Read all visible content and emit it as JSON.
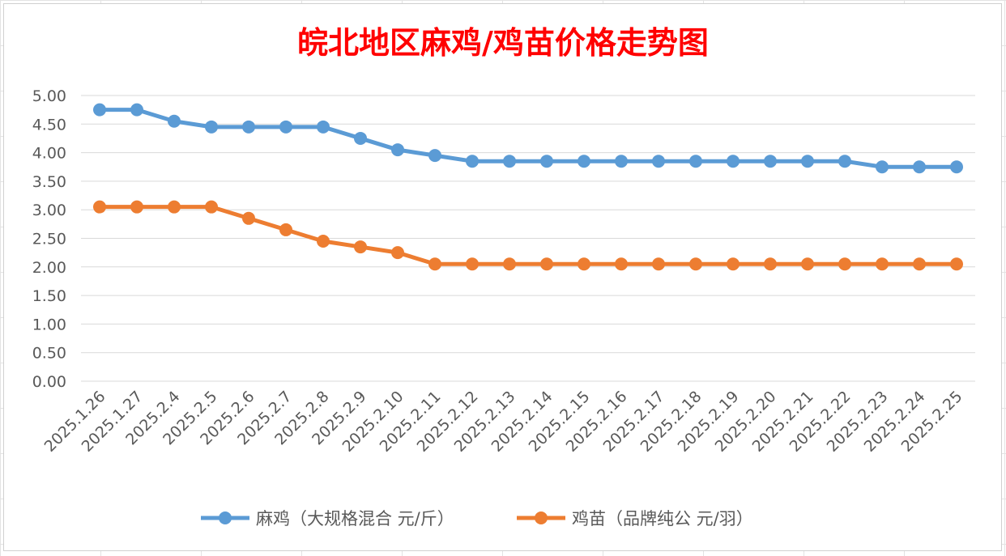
{
  "chart_data": {
    "type": "line",
    "title": "皖北地区麻鸡/鸡苗价格走势图",
    "xlabel": "",
    "ylabel": "",
    "ylim": [
      0,
      5
    ],
    "ytick_labels": [
      "0.00",
      "0.50",
      "1.00",
      "1.50",
      "2.00",
      "2.50",
      "3.00",
      "3.50",
      "4.00",
      "4.50",
      "5.00"
    ],
    "grid": true,
    "legend_position": "bottom",
    "categories": [
      "2025.1.26",
      "2025.1.27",
      "2025.2.4",
      "2025.2.5",
      "2025.2.6",
      "2025.2.7",
      "2025.2.8",
      "2025.2.9",
      "2025.2.10",
      "2025.2.11",
      "2025.2.12",
      "2025.2.13",
      "2025.2.14",
      "2025.2.15",
      "2025.2.16",
      "2025.2.17",
      "2025.2.18",
      "2025.2.19",
      "2025.2.20",
      "2025.2.21",
      "2025.2.22",
      "2025.2.23",
      "2025.2.24",
      "2025.2.25"
    ],
    "series": [
      {
        "name": "麻鸡（大规格混合 元/斤）",
        "color": "#5b9bd5",
        "values": [
          4.75,
          4.75,
          4.55,
          4.45,
          4.45,
          4.45,
          4.45,
          4.25,
          4.05,
          3.95,
          3.85,
          3.85,
          3.85,
          3.85,
          3.85,
          3.85,
          3.85,
          3.85,
          3.85,
          3.85,
          3.85,
          3.75,
          3.75,
          3.75
        ]
      },
      {
        "name": "鸡苗（品牌纯公 元/羽）",
        "color": "#ed7d31",
        "values": [
          3.05,
          3.05,
          3.05,
          3.05,
          2.85,
          2.65,
          2.45,
          2.35,
          2.25,
          2.05,
          2.05,
          2.05,
          2.05,
          2.05,
          2.05,
          2.05,
          2.05,
          2.05,
          2.05,
          2.05,
          2.05,
          2.05,
          2.05,
          2.05
        ]
      }
    ]
  }
}
